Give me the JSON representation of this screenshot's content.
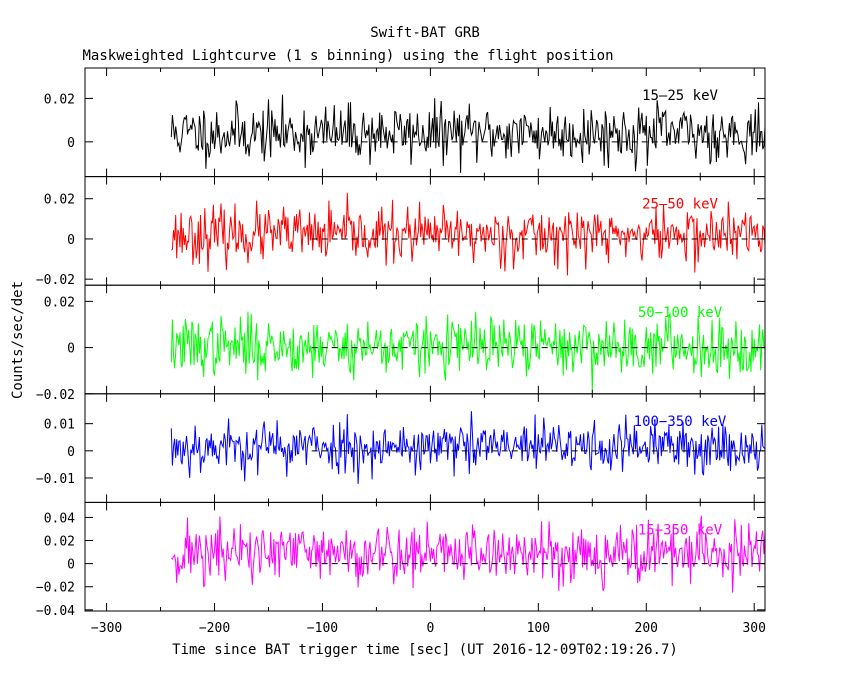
{
  "chart_data": {
    "type": "line",
    "title": "Swift-BAT GRB",
    "subtitle": "Maskweighted Lightcurve (1 s binning) using the flight position",
    "xlabel": "Time since BAT trigger time [sec] (UT 2016-12-09T02:19:26.7)",
    "ylabel": "Counts/sec/det",
    "xlim": [
      -320,
      310
    ],
    "x_ticks": [
      -300,
      -200,
      -100,
      0,
      100,
      200,
      300
    ],
    "x_tick_labels": [
      "−300",
      "−200",
      "−100",
      "0",
      "100",
      "200",
      "300"
    ],
    "x_data_range": [
      -240,
      310
    ],
    "bin_width_sec": 1,
    "panels": [
      {
        "name": "15-25 keV",
        "label": "15–25 keV",
        "color": "#000000",
        "ylim": [
          -0.016,
          0.034
        ],
        "y_ticks": [
          0,
          0.02
        ],
        "y_tick_labels": [
          "0",
          "0.02"
        ],
        "mean": 0.004,
        "noise_sigma": 0.0065,
        "seed": 11
      },
      {
        "name": "25-50 keV",
        "label": "25–50 keV",
        "color": "#ff0000",
        "ylim": [
          -0.023,
          0.031
        ],
        "y_ticks": [
          -0.02,
          0,
          0.02
        ],
        "y_tick_labels": [
          "−0.02",
          "0",
          "0.02"
        ],
        "mean": 0.002,
        "noise_sigma": 0.0068,
        "seed": 23
      },
      {
        "name": "50-100 keV",
        "label": "50−100 keV",
        "color": "#00ff00",
        "ylim": [
          -0.02,
          0.027
        ],
        "y_ticks": [
          -0.02,
          0,
          0.02
        ],
        "y_tick_labels": [
          "−0.02",
          "0",
          "0.02"
        ],
        "mean": 0.0005,
        "noise_sigma": 0.0062,
        "seed": 37
      },
      {
        "name": "100-350 keV",
        "label": "100−350 keV",
        "color": "#0000ff",
        "ylim": [
          -0.019,
          0.021
        ],
        "y_ticks": [
          -0.01,
          0,
          0.01
        ],
        "y_tick_labels": [
          "−0.01",
          "0",
          "0.01"
        ],
        "mean": 0.0015,
        "noise_sigma": 0.0048,
        "seed": 53
      },
      {
        "name": "15-350 keV",
        "label": "15−350 keV",
        "color": "#ff00ff",
        "ylim": [
          -0.041,
          0.053
        ],
        "y_ticks": [
          -0.04,
          -0.02,
          0,
          0.02,
          0.04
        ],
        "y_tick_labels": [
          "−0.04",
          "−0.02",
          "0",
          "0.02",
          "0.04"
        ],
        "mean": 0.009,
        "noise_sigma": 0.0135,
        "seed": 71
      }
    ]
  }
}
